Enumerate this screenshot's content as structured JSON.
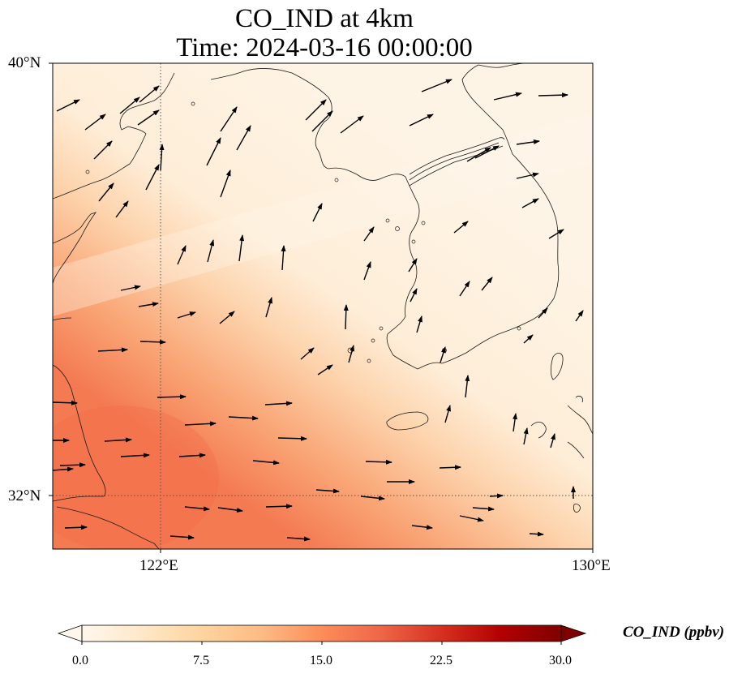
{
  "title": {
    "line1": "CO_IND at 4km",
    "line2": "Time: 2024-03-16 00:00:00"
  },
  "map": {
    "lat_range": [
      31,
      40
    ],
    "lon_range": [
      120,
      130
    ],
    "lat_ticks": [
      "32°N",
      "40°N"
    ],
    "lon_ticks": [
      "122°E",
      "130°E"
    ],
    "gridline_style": "dotted"
  },
  "field": {
    "name": "CO_IND",
    "units": "ppbv",
    "pattern": "highest along the southwestern coast, decreasing to the northeast"
  },
  "colorbar": {
    "label": "CO_IND (ppbv)",
    "min": 0.0,
    "max": 30.0,
    "ticks": [
      "0.0",
      "7.5",
      "15.0",
      "22.5",
      "30.0"
    ],
    "extend": "both",
    "colormap": "OrRd",
    "colors": [
      "#fff7ec",
      "#fee8c8",
      "#fdd49e",
      "#fdbb84",
      "#fc8d59",
      "#ef6548",
      "#d7301f",
      "#b30000",
      "#7f0000"
    ]
  },
  "colors": {
    "coastline": "#1a1a1a",
    "gridline": "#555555",
    "wind_arrow": "#000000"
  }
}
